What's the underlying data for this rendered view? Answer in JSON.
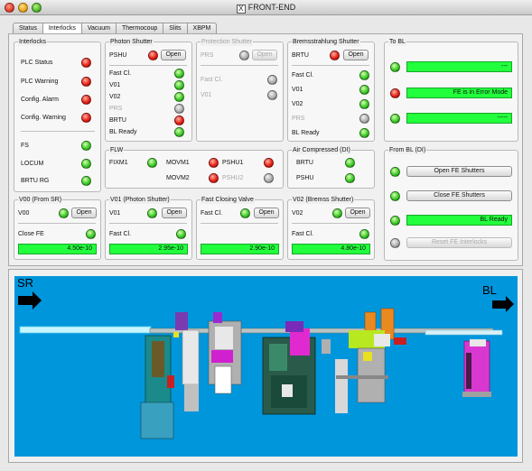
{
  "window": {
    "title": "FRONT-END",
    "title_icon": "x11-icon"
  },
  "tabs": [
    {
      "label": "Status",
      "active": false
    },
    {
      "label": "Interlocks",
      "active": true
    },
    {
      "label": "Vacuum",
      "active": false
    },
    {
      "label": "Thermocoup",
      "active": false
    },
    {
      "label": "Slits",
      "active": false
    },
    {
      "label": "XBPM",
      "active": false
    }
  ],
  "interlocks": {
    "title": "Interlocks",
    "items": [
      {
        "label": "PLC Status",
        "state": "red"
      },
      {
        "label": "PLC Warning",
        "state": "red"
      },
      {
        "label": "Config. Alarm",
        "state": "red"
      },
      {
        "label": "Config. Warning",
        "state": "red"
      },
      {
        "label": "FS",
        "state": "green"
      },
      {
        "label": "LOCUM",
        "state": "green"
      },
      {
        "label": "BRTU RG",
        "state": "green"
      }
    ]
  },
  "photon_shutter": {
    "title": "Photon Shutter",
    "name": "PSHU",
    "name_state": "red",
    "button": "Open",
    "items": [
      {
        "label": "Fast Cl.",
        "state": "green"
      },
      {
        "label": "V01",
        "state": "green"
      },
      {
        "label": "V02",
        "state": "green"
      },
      {
        "label": "PRS",
        "state": "gray"
      },
      {
        "label": "BRTU",
        "state": "red"
      },
      {
        "label": "BL Ready",
        "state": "green"
      }
    ]
  },
  "protection_shutter": {
    "title": "Protection Shutter",
    "name": "PRS",
    "name_state": "gray",
    "button": "Open",
    "items": [
      {
        "label": "Fast Cl.",
        "state": "gray"
      },
      {
        "label": "V01",
        "state": "gray"
      }
    ]
  },
  "brems_shutter": {
    "title": "Bremsstrahlung Shutter",
    "name": "BRTU",
    "name_state": "red",
    "button": "Open",
    "items": [
      {
        "label": "Fast Cl.",
        "state": "green"
      },
      {
        "label": "V01",
        "state": "green"
      },
      {
        "label": "V02",
        "state": "green"
      },
      {
        "label": "PRS",
        "state": "gray"
      },
      {
        "label": "BL Ready",
        "state": "green"
      }
    ]
  },
  "flw": {
    "title": "FLW",
    "fixm1": "FIXM1",
    "movm1": "MOVM1",
    "movm2": "MOVM2",
    "pshu1": "PSHU1",
    "pshu2": "PSHU2"
  },
  "air_compressed": {
    "title": "Air Compressed (DI)",
    "items": [
      {
        "label": "BRTU",
        "state": "green"
      },
      {
        "label": "PSHU",
        "state": "green"
      }
    ]
  },
  "v00": {
    "title": "V00 (From SR)",
    "name": "V00",
    "button": "Open",
    "fast_label": "Close FE",
    "value": "4.50e-10"
  },
  "v01": {
    "title": "V01 (Photon Shutter)",
    "name": "V01",
    "button": "Open",
    "fast_label": "Fast Cl.",
    "value": "2.95e-10"
  },
  "fcv": {
    "title": "Fast Closing Valve",
    "name": "Fast Cl.",
    "button": "Open",
    "value": "2.90e-10"
  },
  "v02": {
    "title": "V02 (Bremss Shutter)",
    "name": "V02",
    "button": "Open",
    "fast_label": "Fast Cl.",
    "value": "4.80e-10"
  },
  "to_bl": {
    "title": "To BL",
    "items": [
      {
        "state": "green",
        "text": "---"
      },
      {
        "state": "red",
        "text": "FE is in Error Mode"
      },
      {
        "state": "green",
        "text": "-----"
      }
    ]
  },
  "from_bl": {
    "title": "From BL (DI)",
    "open_button": "Open FE Shutters",
    "close_button": "Close FE Shutters",
    "bl_ready": "BL Ready",
    "reset_button": "Reset FE Interlocks"
  },
  "scene": {
    "left_label": "SR",
    "right_label": "BL"
  },
  "colors": {
    "led_green": "#3fcc2a",
    "led_red": "#e8231a",
    "led_gray": "#b0b0b0",
    "bar_green": "#22ff3c",
    "scene_bg": "#0096dc"
  }
}
